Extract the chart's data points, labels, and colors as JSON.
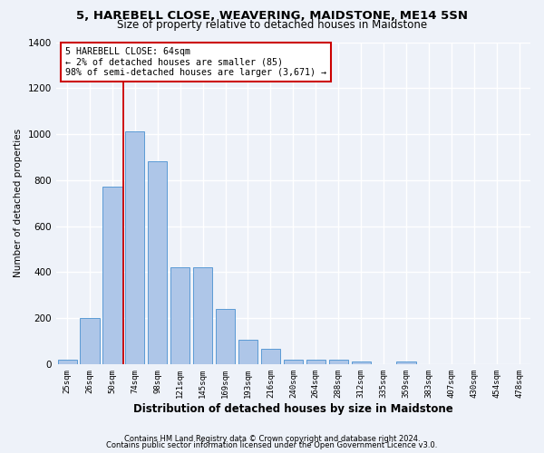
{
  "title": "5, HAREBELL CLOSE, WEAVERING, MAIDSTONE, ME14 5SN",
  "subtitle": "Size of property relative to detached houses in Maidstone",
  "xlabel": "Distribution of detached houses by size in Maidstone",
  "ylabel": "Number of detached properties",
  "bar_labels": [
    "25sqm",
    "26sqm",
    "50sqm",
    "74sqm",
    "98sqm",
    "121sqm",
    "145sqm",
    "169sqm",
    "193sqm",
    "216sqm",
    "240sqm",
    "264sqm",
    "288sqm",
    "312sqm",
    "335sqm",
    "359sqm",
    "383sqm",
    "407sqm",
    "430sqm",
    "454sqm",
    "478sqm"
  ],
  "bar_values": [
    20,
    200,
    770,
    1010,
    880,
    420,
    420,
    240,
    105,
    65,
    20,
    18,
    18,
    12,
    0,
    10,
    0,
    0,
    0,
    0,
    0
  ],
  "bar_color": "#aec6e8",
  "bar_edge_color": "#5b9bd5",
  "vline_color": "#cc0000",
  "property_name": "5 HAREBELL CLOSE: 64sqm",
  "annotation_line1": "← 2% of detached houses are smaller (85)",
  "annotation_line2": "98% of semi-detached houses are larger (3,671) →",
  "ylim": [
    0,
    1400
  ],
  "yticks": [
    0,
    200,
    400,
    600,
    800,
    1000,
    1200,
    1400
  ],
  "footer1": "Contains HM Land Registry data © Crown copyright and database right 2024.",
  "footer2": "Contains public sector information licensed under the Open Government Licence v3.0.",
  "bg_color": "#eef2f9",
  "plot_bg_color": "#eef2f9",
  "grid_color": "#ffffff",
  "annotation_box_color": "#ffffff",
  "annotation_box_edge": "#cc0000",
  "title_fontsize": 9.5,
  "subtitle_fontsize": 8.5,
  "xlabel_fontsize": 8.5,
  "ylabel_fontsize": 7.5,
  "tick_fontsize": 6.5,
  "annotation_fontsize": 7.2,
  "footer_fontsize": 6.0
}
